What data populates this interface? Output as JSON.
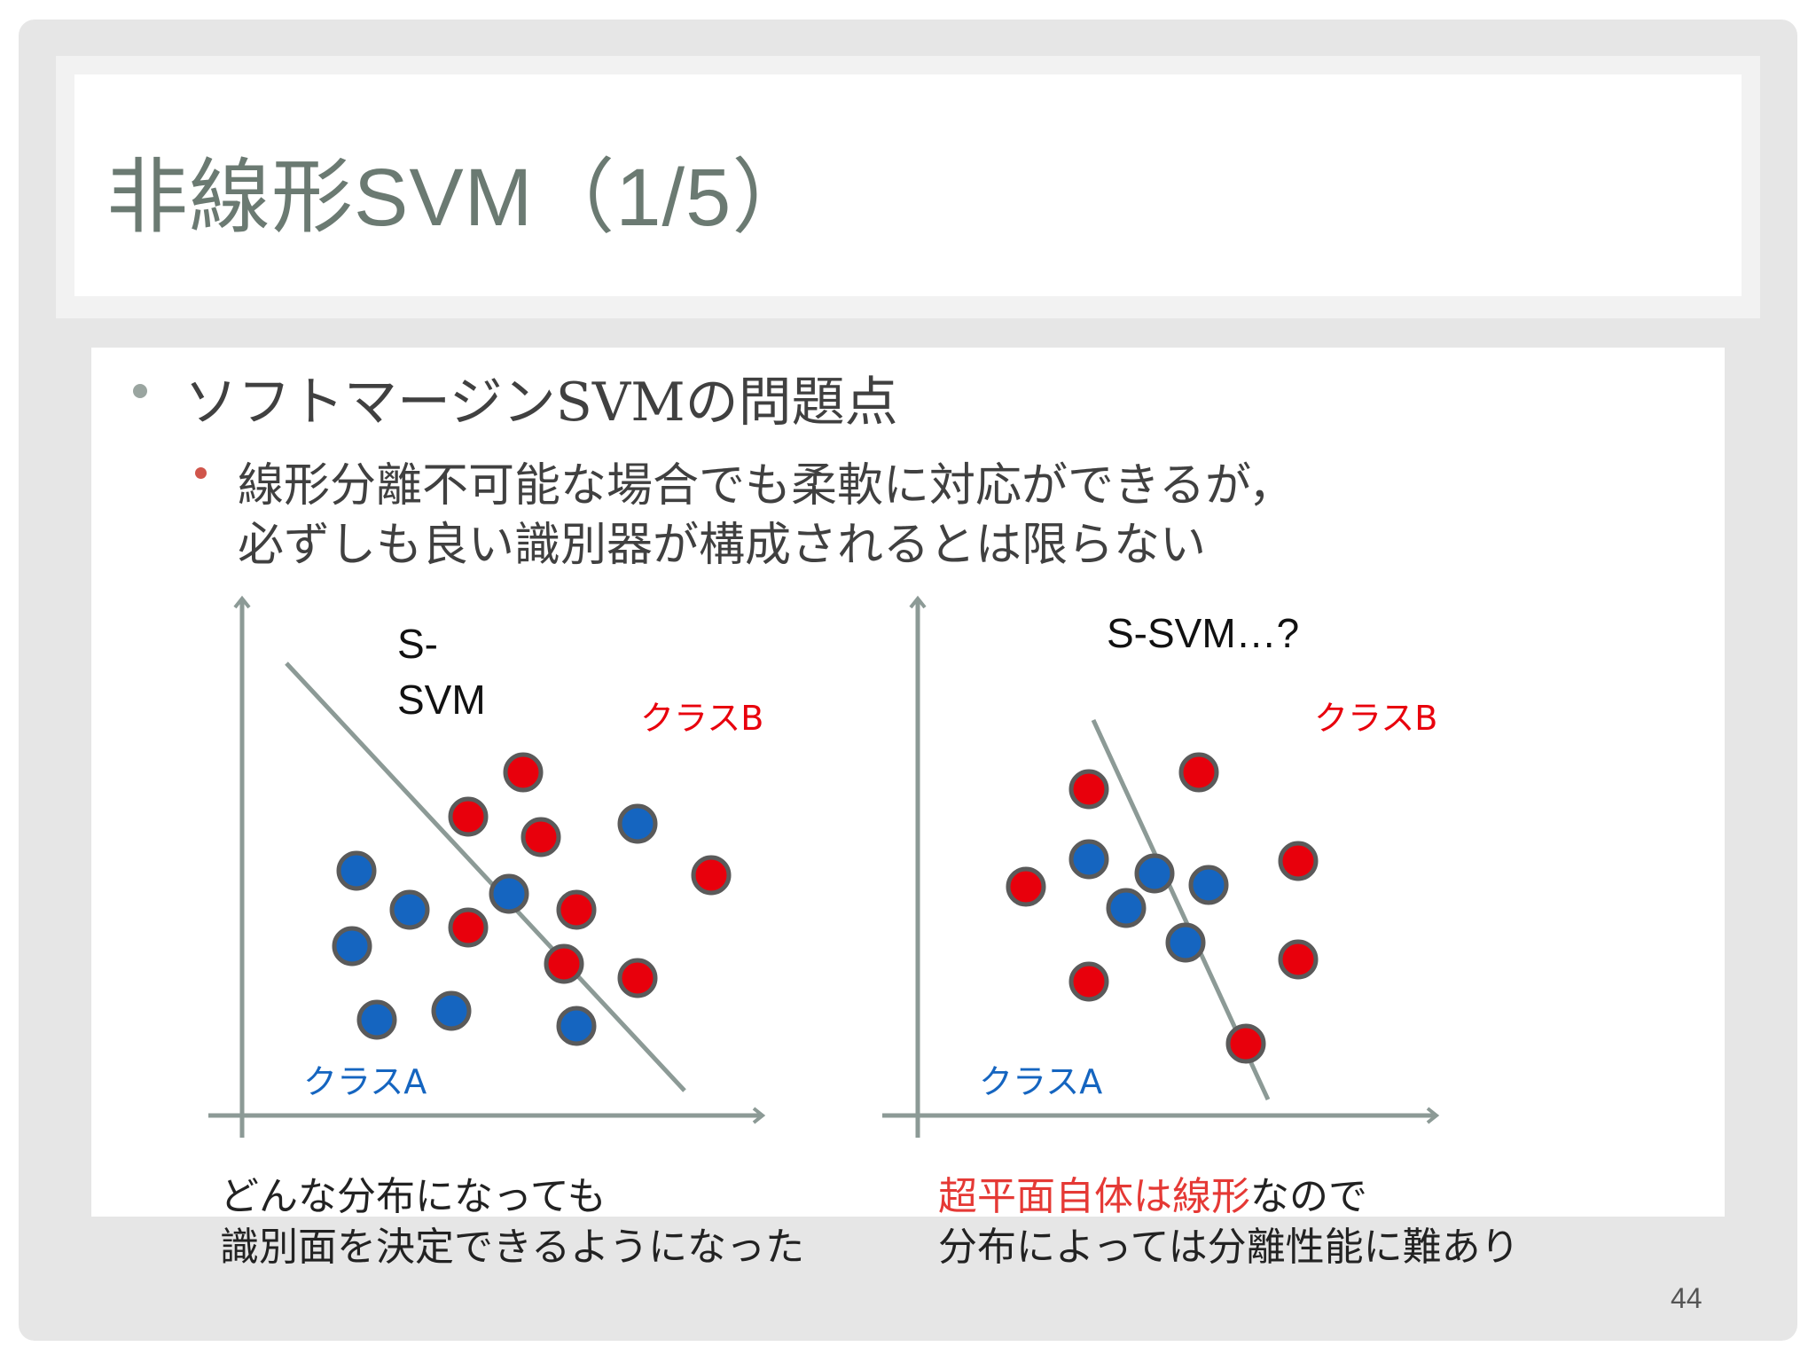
{
  "title": {
    "jp": "非線形",
    "latin": "SVM（1/5）"
  },
  "bullets": {
    "level1": "ソフトマージンSVMの問題点",
    "level2_line1": "線形分離不可能な場合でも柔軟に対応ができるが，",
    "level2_line2": "必ずしも良い識別器が構成されるとは限らない"
  },
  "left_plot": {
    "label_line1": "S-",
    "label_line2": "SVM",
    "class_a": "クラスA",
    "class_b": "クラスB",
    "caption_line1": "どんな分布になっても",
    "caption_line2": "識別面を決定できるようになった"
  },
  "right_plot": {
    "label": "S-SVM…?",
    "class_a": "クラスA",
    "class_b": "クラスB",
    "caption_line1_red": "超平面自体は線形",
    "caption_line1_rest": "なので",
    "caption_line2": "分布によっては分離性能に難あり"
  },
  "page_number": "44",
  "colors": {
    "class_a": "#1565c0",
    "class_b": "#e8000c",
    "axis": "#8c9a96",
    "title": "#6b7a72"
  }
}
